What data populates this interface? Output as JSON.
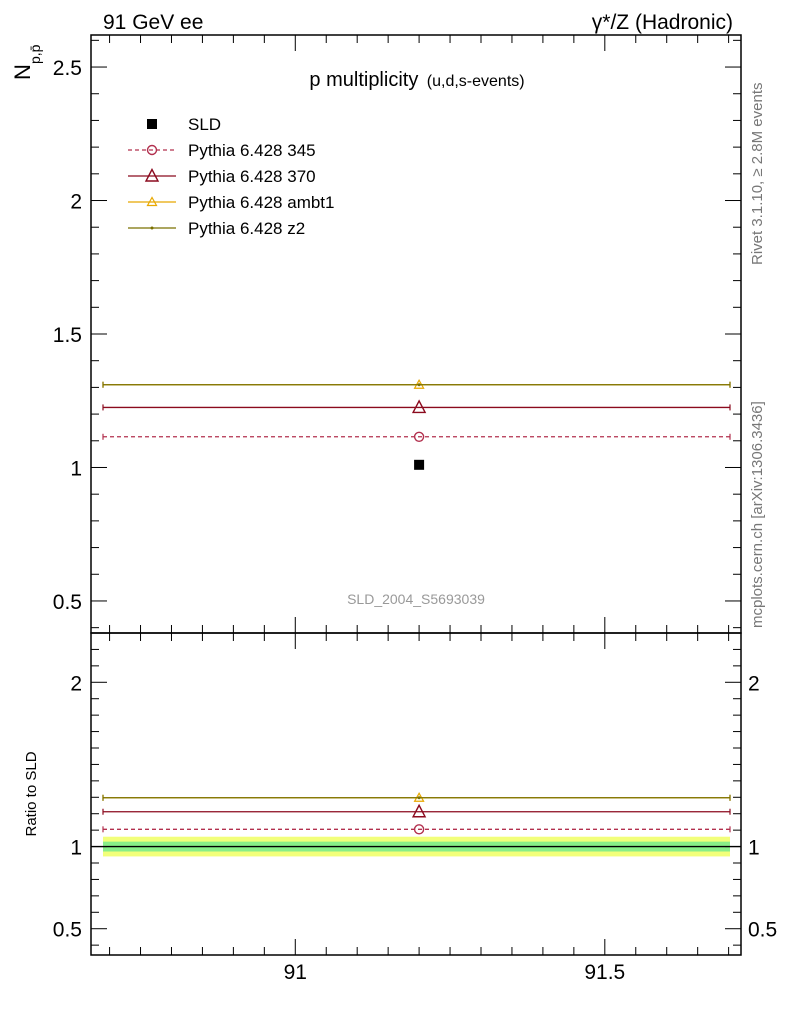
{
  "header": {
    "left": "91 GeV ee",
    "right": "γ*/Z (Hadronic)"
  },
  "side_text": {
    "rivet": "Rivet 3.1.10, ≥ 2.8M events",
    "mcplots": "mcplots.cern.ch [arXiv:1306.3436]"
  },
  "chart_data": [
    {
      "type": "line",
      "title": "p multiplicity",
      "subtitle": "(u,d,s-events)",
      "ylabel_main": "N",
      "ylabel_sub": "p,p̄",
      "watermark": "SLD_2004_S5693039",
      "x": [
        91.2
      ],
      "x_bin": [
        90.67,
        91.72
      ],
      "xlim": [
        90.67,
        91.72
      ],
      "ylim": [
        0.38,
        2.62
      ],
      "yticks": [
        0.5,
        1,
        1.5,
        2,
        2.5
      ],
      "ytick_labels": [
        "0.5",
        "1",
        "1.5",
        "2",
        "2.5"
      ],
      "legend_position": "top-left",
      "series": [
        {
          "name": "SLD",
          "kind": "data",
          "color": "#000000",
          "marker": "square",
          "values": [
            1.01
          ]
        },
        {
          "name": "Pythia 6.428 345",
          "kind": "mc",
          "color": "#b2304e",
          "marker": "open-circle",
          "dashed": true,
          "values": [
            1.115
          ]
        },
        {
          "name": "Pythia 6.428 370",
          "kind": "mc",
          "color": "#8b0a1e",
          "marker": "open-triangle",
          "dashed": false,
          "values": [
            1.225
          ]
        },
        {
          "name": "Pythia 6.428 ambt1",
          "kind": "mc",
          "color": "#e8a800",
          "marker": "open-triangle-small",
          "dashed": false,
          "values": [
            1.31
          ]
        },
        {
          "name": "Pythia 6.428 z2",
          "kind": "mc",
          "color": "#7a7000",
          "marker": "dot",
          "dashed": false,
          "values": [
            1.31
          ]
        }
      ]
    },
    {
      "type": "line",
      "ylabel": "Ratio to SLD",
      "xlim": [
        90.67,
        91.72
      ],
      "ylim": [
        0.34,
        2.3
      ],
      "yticks": [
        0.5,
        1,
        2
      ],
      "ytick_labels": [
        "0.5",
        "1",
        "2"
      ],
      "xticks": [
        91,
        91.5
      ],
      "xtick_labels": [
        "91",
        "91.5"
      ],
      "band_inner": [
        0.97,
        1.03
      ],
      "band_outer": [
        0.94,
        1.06
      ],
      "band_inner_color": "#88ee88",
      "band_outer_color": "#f2ff7a",
      "series": [
        {
          "name": "Pythia 6.428 345",
          "color": "#b2304e",
          "marker": "open-circle",
          "dashed": true,
          "values": [
            1.105
          ]
        },
        {
          "name": "Pythia 6.428 370",
          "color": "#8b0a1e",
          "marker": "open-triangle",
          "dashed": false,
          "values": [
            1.212
          ]
        },
        {
          "name": "Pythia 6.428 ambt1",
          "color": "#e8a800",
          "marker": "open-triangle-small",
          "dashed": false,
          "values": [
            1.297
          ]
        },
        {
          "name": "Pythia 6.428 z2",
          "color": "#7a7000",
          "marker": "dot",
          "dashed": false,
          "values": [
            1.297
          ]
        }
      ]
    }
  ]
}
